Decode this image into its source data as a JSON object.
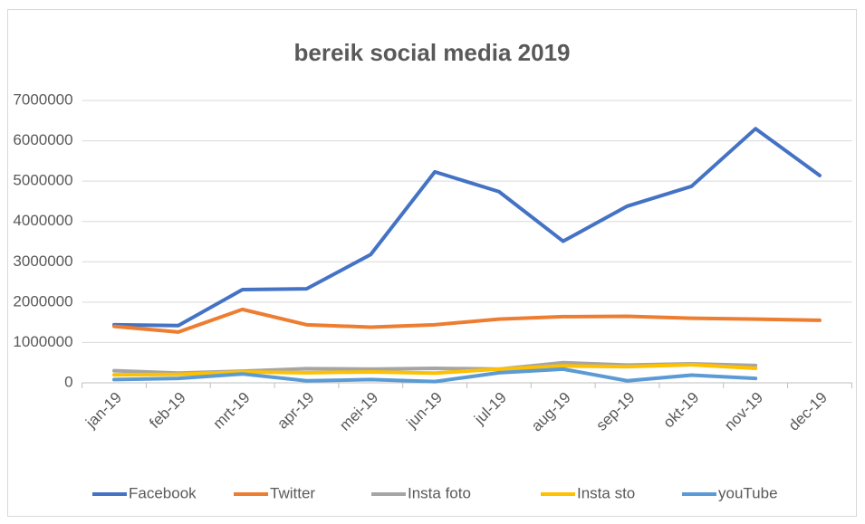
{
  "chart_data": {
    "type": "line",
    "title": "bereik social media 2019",
    "categories": [
      "jan-19",
      "feb-19",
      "mrt-19",
      "apr-19",
      "mei-19",
      "jun-19",
      "jul-19",
      "aug-19",
      "sep-19",
      "okt-19",
      "nov-19",
      "dec-19"
    ],
    "series": [
      {
        "name": "Facebook",
        "color": "#4472c4",
        "values": [
          1440000,
          1420000,
          2310000,
          2330000,
          3180000,
          5230000,
          4740000,
          3510000,
          4380000,
          4870000,
          6300000,
          5140000
        ]
      },
      {
        "name": "Twitter",
        "color": "#ed7d31",
        "values": [
          1400000,
          1260000,
          1820000,
          1440000,
          1380000,
          1440000,
          1580000,
          1640000,
          1650000,
          1600000,
          1580000,
          1550000
        ]
      },
      {
        "name": "Insta foto",
        "color": "#a5a5a5",
        "values": [
          300000,
          240000,
          290000,
          350000,
          340000,
          360000,
          340000,
          500000,
          440000,
          470000,
          430000,
          null
        ]
      },
      {
        "name": "Insta sto",
        "color": "#ffc000",
        "values": [
          200000,
          210000,
          270000,
          250000,
          270000,
          240000,
          340000,
          420000,
          400000,
          450000,
          360000,
          null
        ]
      },
      {
        "name": "youTube",
        "color": "#5b9bd5",
        "values": [
          80000,
          110000,
          220000,
          50000,
          80000,
          30000,
          250000,
          340000,
          50000,
          190000,
          110000,
          null
        ]
      }
    ],
    "ylim": [
      0,
      7000000
    ],
    "yticks": [
      0,
      1000000,
      2000000,
      3000000,
      4000000,
      5000000,
      6000000,
      7000000
    ],
    "grid": true,
    "legend": "bottom"
  }
}
